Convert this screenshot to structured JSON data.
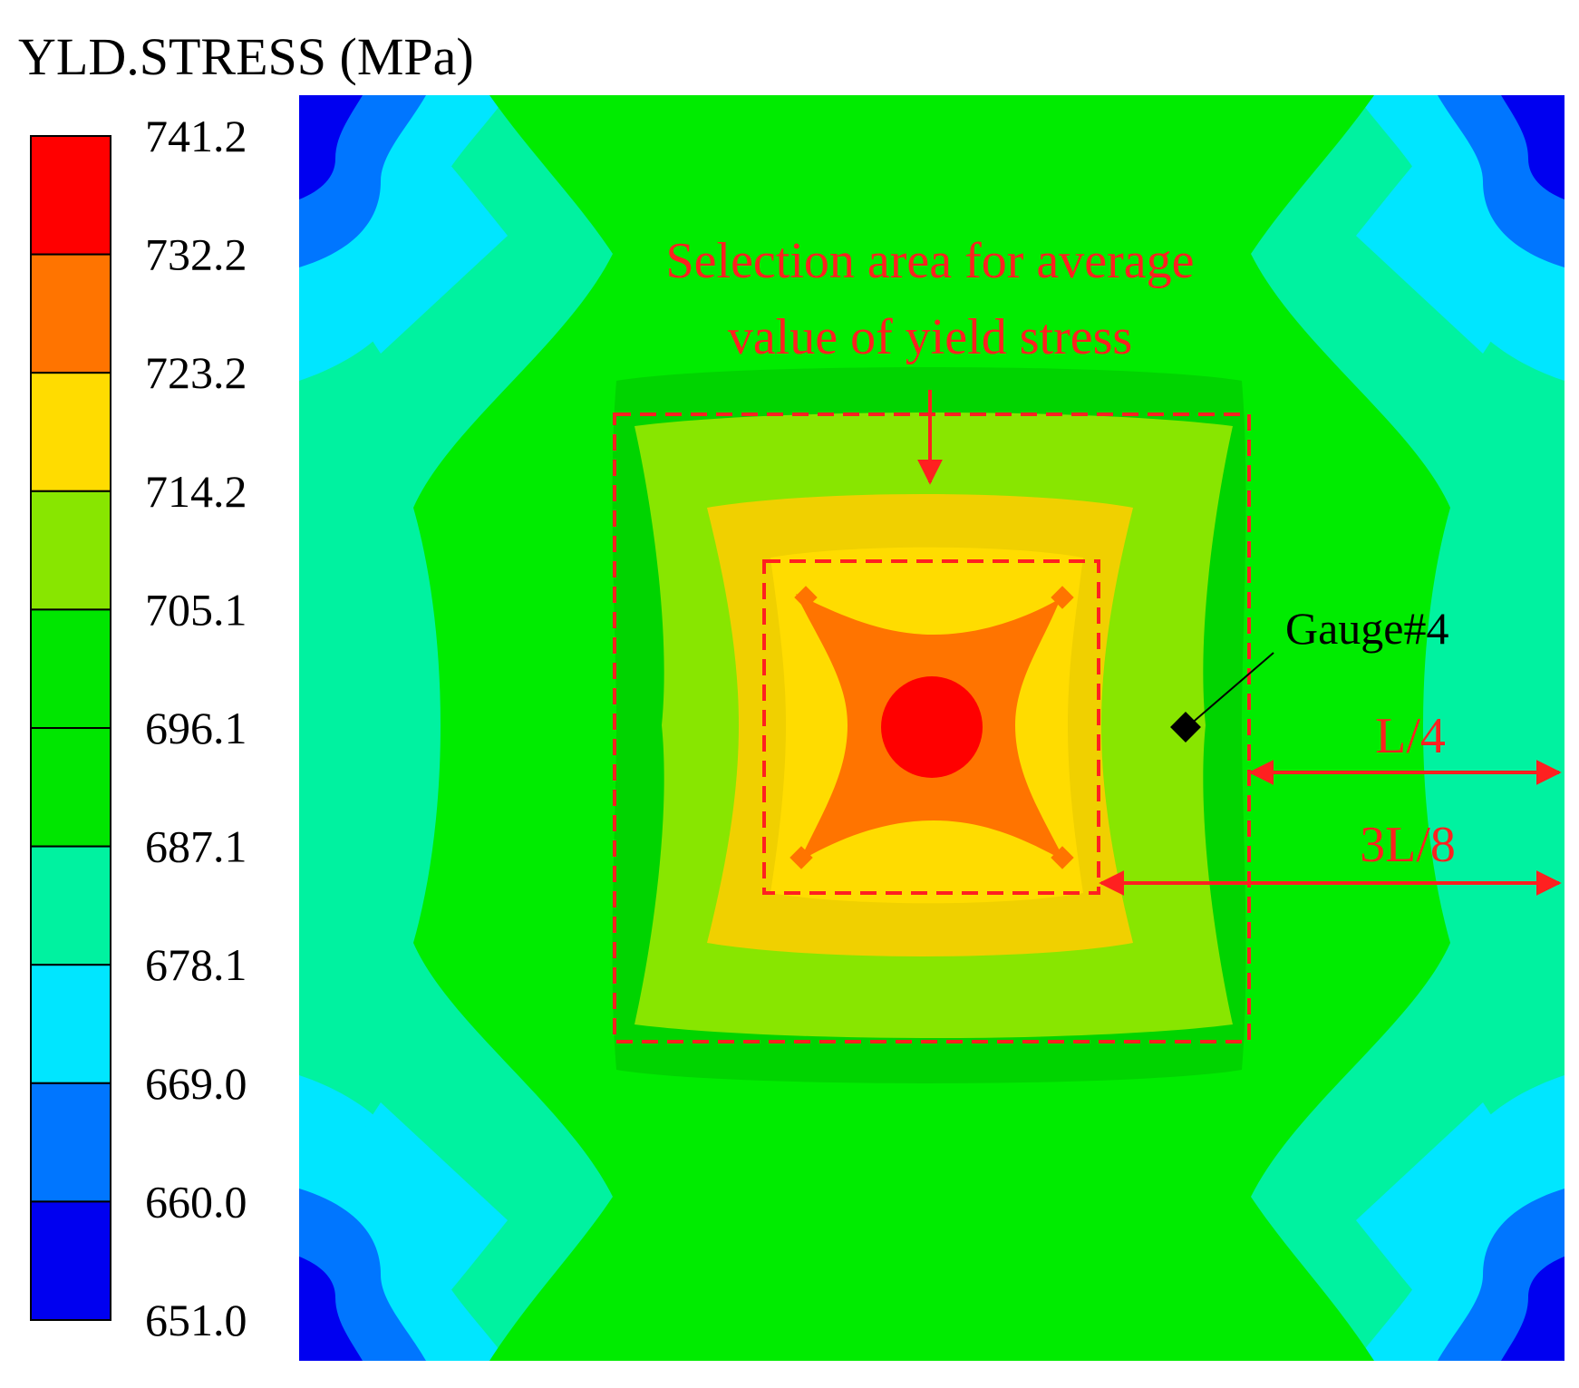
{
  "legend": {
    "title": "YLD.STRESS (MPa)",
    "unit": "MPa",
    "ticks": [
      "741.2",
      "732.2",
      "723.2",
      "714.2",
      "705.1",
      "696.1",
      "687.1",
      "678.1",
      "669.0",
      "660.0",
      "651.0"
    ],
    "colors": [
      "#ff0000",
      "#ff7400",
      "#ffdc00",
      "#88e600",
      "#00e600",
      "#00e600",
      "#00f2a0",
      "#00e6ff",
      "#0076ff",
      "#0000f0"
    ]
  },
  "palette": {
    "band_651": "#0000f0",
    "band_660": "#0076ff",
    "band_669": "#00e6ff",
    "band_678": "#00f2a0",
    "band_687": "#00ec00",
    "band_696": "#00d400",
    "band_705": "#88e600",
    "band_714": "#f0d000",
    "band_723": "#ffdc00",
    "band_732": "#ff7400",
    "band_741": "#ff0000",
    "annotation_red": "#ff2020",
    "gauge_black": "#000000"
  },
  "annotations": {
    "selection_line1": "Selection area for average",
    "selection_line2": "value of yield stress",
    "gauge_label": "Gauge#4",
    "outer_dim_label": "L/4",
    "inner_dim_label": "3L/8"
  }
}
